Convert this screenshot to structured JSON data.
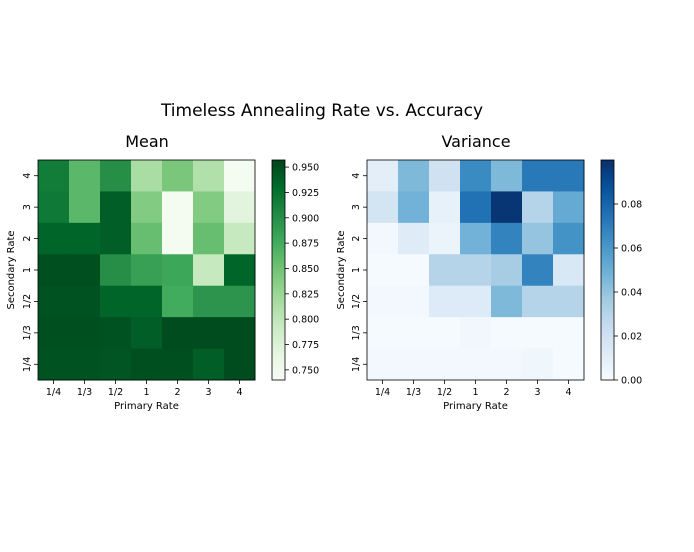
{
  "figure": {
    "title": "Timeless Annealing Rate vs. Accuracy"
  },
  "chart_data": [
    {
      "type": "heatmap",
      "title": "Mean",
      "xlabel": "Primary Rate",
      "ylabel": "Secondary Rate",
      "x_categories": [
        "1/4",
        "1/3",
        "1/2",
        "1",
        "2",
        "3",
        "4"
      ],
      "y_categories": [
        "4",
        "3",
        "2",
        "1",
        "1/2",
        "1/3",
        "1/4"
      ],
      "colormap": "Greens",
      "color_range": [
        0.74,
        0.957
      ],
      "colorbar_ticks": [
        "0.950",
        "0.925",
        "0.900",
        "0.875",
        "0.850",
        "0.825",
        "0.800",
        "0.775",
        "0.750"
      ],
      "values": [
        [
          0.916,
          0.862,
          0.9,
          0.815,
          0.845,
          0.81,
          0.745
        ],
        [
          0.918,
          0.862,
          0.94,
          0.84,
          0.745,
          0.84,
          0.77
        ],
        [
          0.935,
          0.935,
          0.94,
          0.855,
          0.745,
          0.855,
          0.795
        ],
        [
          0.95,
          0.95,
          0.9,
          0.885,
          0.88,
          0.795,
          0.935
        ],
        [
          0.948,
          0.948,
          0.935,
          0.935,
          0.875,
          0.895,
          0.895
        ],
        [
          0.95,
          0.95,
          0.948,
          0.94,
          0.952,
          0.952,
          0.952
        ],
        [
          0.948,
          0.948,
          0.946,
          0.95,
          0.95,
          0.94,
          0.952
        ]
      ]
    },
    {
      "type": "heatmap",
      "title": "Variance",
      "xlabel": "Primary Rate",
      "ylabel": "Secondary Rate",
      "x_categories": [
        "1/4",
        "1/3",
        "1/2",
        "1",
        "2",
        "3",
        "4"
      ],
      "y_categories": [
        "4",
        "3",
        "2",
        "1",
        "1/2",
        "1/3",
        "1/4"
      ],
      "colormap": "Blues",
      "color_range": [
        0.0,
        0.1
      ],
      "colorbar_ticks": [
        "0.08",
        "0.06",
        "0.04",
        "0.02",
        "0.00"
      ],
      "values": [
        [
          0.01,
          0.045,
          0.02,
          0.065,
          0.045,
          0.072,
          0.072
        ],
        [
          0.018,
          0.048,
          0.008,
          0.075,
          0.098,
          0.03,
          0.052
        ],
        [
          0.002,
          0.012,
          0.006,
          0.048,
          0.068,
          0.04,
          0.062
        ],
        [
          0.001,
          0.001,
          0.03,
          0.03,
          0.035,
          0.068,
          0.015
        ],
        [
          0.002,
          0.002,
          0.013,
          0.013,
          0.045,
          0.03,
          0.03
        ],
        [
          0.001,
          0.001,
          0.001,
          0.003,
          0.001,
          0.001,
          0.001
        ],
        [
          0.002,
          0.002,
          0.002,
          0.002,
          0.002,
          0.004,
          0.001
        ]
      ]
    }
  ]
}
